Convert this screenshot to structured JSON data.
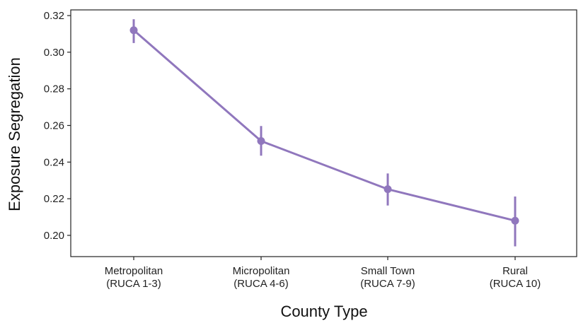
{
  "chart_data": {
    "type": "line",
    "title": "",
    "xlabel": "County Type",
    "ylabel": "Exposure Segregation",
    "categories": [
      [
        "Metropolitan",
        "(RUCA 1-3)"
      ],
      [
        "Micropolitan",
        "(RUCA 4-6)"
      ],
      [
        "Small Town",
        "(RUCA 7-9)"
      ],
      [
        "Rural",
        "(RUCA 10)"
      ]
    ],
    "series": [
      {
        "values": [
          0.312,
          0.2515,
          0.2252,
          0.208
        ],
        "error_low": [
          0.305,
          0.2435,
          0.2163,
          0.194
        ],
        "error_high": [
          0.318,
          0.2597,
          0.2338,
          0.2212
        ]
      }
    ],
    "yticks": [
      "0.20",
      "0.22",
      "0.24",
      "0.26",
      "0.28",
      "0.30",
      "0.32"
    ],
    "ylim": [
      0.1884,
      0.3231
    ],
    "grid": false,
    "legend": "none",
    "colors": {
      "series": "#9077bd",
      "axis": "#222222"
    }
  }
}
